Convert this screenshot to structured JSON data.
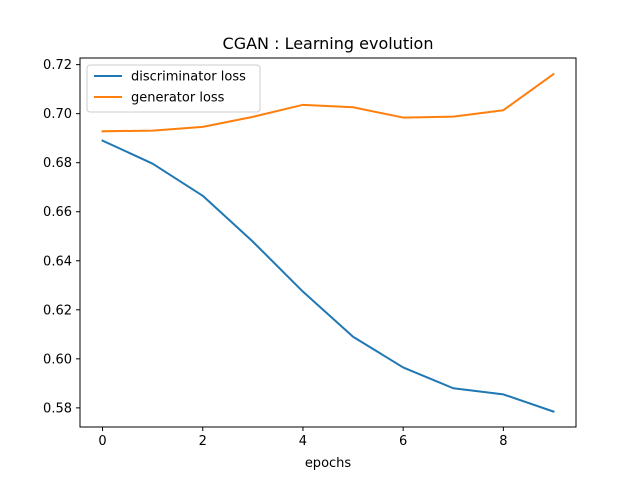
{
  "chart_data": {
    "type": "line",
    "title": "CGAN : Learning evolution",
    "xlabel": "epochs",
    "ylabel": "",
    "x": [
      0,
      1,
      2,
      3,
      4,
      5,
      6,
      7,
      8,
      9
    ],
    "xlim": [
      -0.45,
      9.45
    ],
    "ylim": [
      0.5722,
      0.7227
    ],
    "xticks": [
      0,
      2,
      4,
      6,
      8
    ],
    "yticks": [
      0.58,
      0.6,
      0.62,
      0.64,
      0.66,
      0.68,
      0.7,
      0.72
    ],
    "ytick_labels": [
      "0.58",
      "0.60",
      "0.62",
      "0.64",
      "0.66",
      "0.68",
      "0.70",
      "0.72"
    ],
    "grid": false,
    "legend_position": "top-left",
    "series": [
      {
        "name": "discriminator loss",
        "color": "#1f77b4",
        "values": [
          0.689,
          0.6796,
          0.6665,
          0.6478,
          0.6274,
          0.609,
          0.5965,
          0.588,
          0.5855,
          0.5785
        ]
      },
      {
        "name": "generator loss",
        "color": "#ff7f0e",
        "values": [
          0.6928,
          0.6931,
          0.6946,
          0.6987,
          0.7036,
          0.7026,
          0.6984,
          0.6988,
          0.7014,
          0.7161
        ]
      }
    ]
  }
}
